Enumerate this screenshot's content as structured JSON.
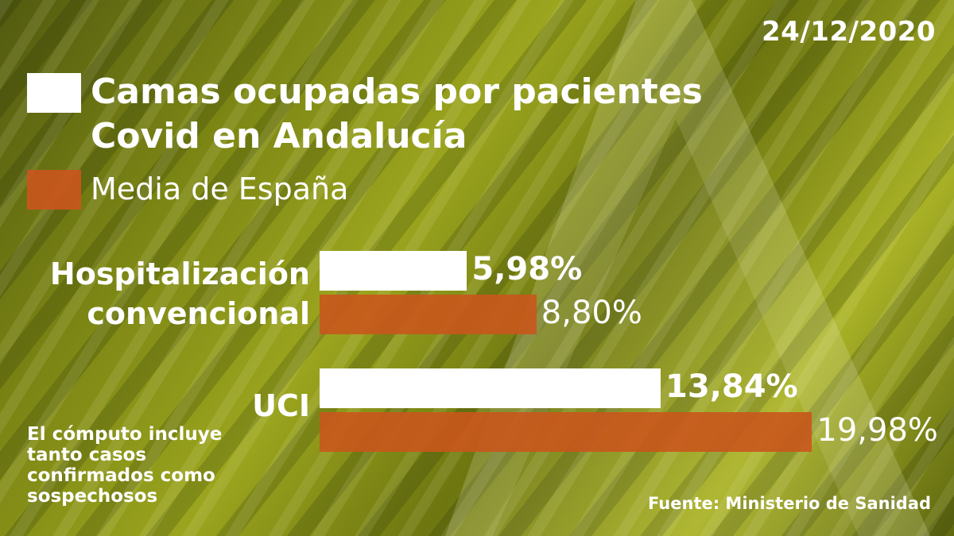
{
  "date": "24/12/2020",
  "legend": {
    "andalucia": "Camas ocupadas por pacientes Covid en Andalucía",
    "espana": "Media de España"
  },
  "note": "El cómputo incluye tanto casos confirmados como sospechosos",
  "source": "Fuente: Ministerio de Sanidad",
  "colors": {
    "andalucia": "#ffffff",
    "espana": "#c9561c"
  },
  "chart_data": {
    "type": "bar",
    "orientation": "horizontal",
    "categories": [
      "Hospitalización convencional",
      "UCI"
    ],
    "series": [
      {
        "name": "Camas ocupadas por pacientes Covid en Andalucía",
        "values": [
          5.98,
          13.84
        ],
        "labels": [
          "5,98%",
          "13,84%"
        ]
      },
      {
        "name": "Media de España",
        "values": [
          8.8,
          19.98
        ],
        "labels": [
          "8,80%",
          "19,98%"
        ]
      }
    ],
    "unit": "%",
    "legend_position": "top-left",
    "grid": false
  }
}
